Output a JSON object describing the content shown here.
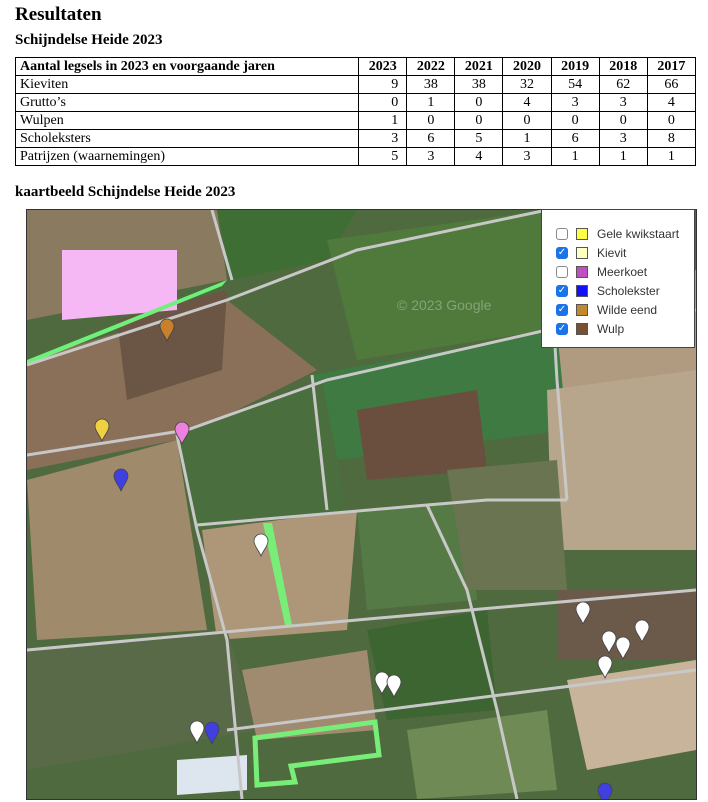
{
  "heading": "Resultaten",
  "table_title": "Schijndelse Heide 2023",
  "table": {
    "headers": [
      "Aantal legsels in 2023 en voorgaande jaren",
      "2023",
      "2022",
      "2021",
      "2020",
      "2019",
      "2018",
      "2017"
    ],
    "rows": [
      [
        "Kieviten",
        "9",
        "38",
        "38",
        "32",
        "54",
        "62",
        "66"
      ],
      [
        "Grutto’s",
        "0",
        "1",
        "0",
        "4",
        "3",
        "3",
        "4"
      ],
      [
        "Wulpen",
        "1",
        "0",
        "0",
        "0",
        "0",
        "0",
        "0"
      ],
      [
        "Scholeksters",
        "3",
        "6",
        "5",
        "1",
        "6",
        "3",
        "8"
      ],
      [
        "Patrijzen (waarnemingen)",
        "5",
        "3",
        "4",
        "3",
        "1",
        "1",
        "1"
      ]
    ]
  },
  "map_title": "kaartbeeld Schijndelse Heide 2023",
  "map": {
    "watermark": "© 2023 Google",
    "legend": [
      {
        "label": "Gele kwikstaart",
        "checked": false,
        "color": "#ffff44"
      },
      {
        "label": "Kievit",
        "checked": true,
        "color": "#ffffc0"
      },
      {
        "label": "Meerkoet",
        "checked": false,
        "color": "#c050c0"
      },
      {
        "label": "Scholekster",
        "checked": true,
        "color": "#1010ff"
      },
      {
        "label": "Wilde eend",
        "checked": true,
        "color": "#c08830"
      },
      {
        "label": "Wulp",
        "checked": true,
        "color": "#7a5030"
      }
    ],
    "markers": [
      {
        "species": "Wilde eend",
        "color": "#c8802c"
      },
      {
        "species": "Gele kwikstaart",
        "color": "#f0d040"
      },
      {
        "species": "Meerkoet",
        "color": "#f080e0"
      },
      {
        "species": "Scholekster",
        "color": "#4040e0"
      },
      {
        "species": "Kievit",
        "color": "#ffffff"
      },
      {
        "species": "Kievit",
        "color": "#ffffff"
      },
      {
        "species": "Kievit",
        "color": "#ffffff"
      },
      {
        "species": "Kievit",
        "color": "#ffffff"
      },
      {
        "species": "Kievit",
        "color": "#ffffff"
      },
      {
        "species": "Kievit",
        "color": "#ffffff"
      },
      {
        "species": "Kievit",
        "color": "#ffffff"
      },
      {
        "species": "Kievit",
        "color": "#ffffff"
      },
      {
        "species": "Kievit",
        "color": "#ffffff"
      },
      {
        "species": "Scholekster",
        "color": "#4040e0"
      },
      {
        "species": "Scholekster",
        "color": "#4040e0"
      }
    ]
  }
}
